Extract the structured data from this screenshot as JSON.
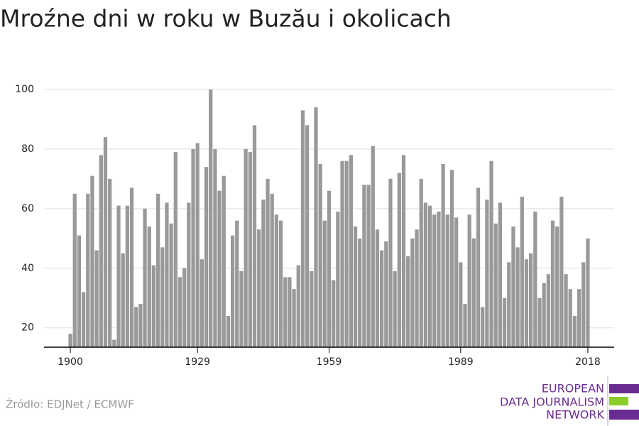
{
  "chart_data": {
    "type": "bar",
    "title": "Mroźne dni w roku w Buzău i okolicach",
    "x": [
      1900,
      1901,
      1902,
      1903,
      1904,
      1905,
      1906,
      1907,
      1908,
      1909,
      1910,
      1911,
      1912,
      1913,
      1914,
      1915,
      1916,
      1917,
      1918,
      1919,
      1920,
      1921,
      1922,
      1923,
      1924,
      1925,
      1926,
      1927,
      1928,
      1929,
      1930,
      1931,
      1932,
      1933,
      1934,
      1935,
      1936,
      1937,
      1938,
      1939,
      1940,
      1941,
      1942,
      1943,
      1944,
      1945,
      1946,
      1947,
      1948,
      1949,
      1950,
      1951,
      1952,
      1953,
      1954,
      1955,
      1956,
      1957,
      1958,
      1959,
      1960,
      1961,
      1962,
      1963,
      1964,
      1965,
      1966,
      1967,
      1968,
      1969,
      1970,
      1971,
      1972,
      1973,
      1974,
      1975,
      1976,
      1977,
      1978,
      1979,
      1980,
      1981,
      1982,
      1983,
      1984,
      1985,
      1986,
      1987,
      1988,
      1989,
      1990,
      1991,
      1992,
      1993,
      1994,
      1995,
      1996,
      1997,
      1998,
      1999,
      2000,
      2001,
      2002,
      2003,
      2004,
      2005,
      2006,
      2007,
      2008,
      2009,
      2010,
      2011,
      2012,
      2013,
      2014,
      2015,
      2016,
      2017,
      2018
    ],
    "values": [
      18,
      65,
      51,
      32,
      65,
      71,
      46,
      78,
      84,
      70,
      16,
      61,
      45,
      61,
      67,
      27,
      28,
      60,
      54,
      41,
      65,
      47,
      62,
      55,
      79,
      37,
      40,
      62,
      80,
      82,
      43,
      74,
      100,
      80,
      66,
      71,
      24,
      51,
      56,
      39,
      80,
      79,
      88,
      53,
      63,
      70,
      65,
      58,
      56,
      37,
      37,
      33,
      41,
      93,
      88,
      39,
      94,
      75,
      56,
      66,
      36,
      59,
      76,
      76,
      78,
      54,
      50,
      68,
      68,
      81,
      53,
      46,
      49,
      70,
      39,
      72,
      78,
      44,
      50,
      53,
      70,
      62,
      61,
      58,
      59,
      75,
      58,
      73,
      57,
      42,
      28,
      58,
      50,
      67,
      27,
      63,
      76,
      55,
      62,
      30,
      42,
      54,
      47,
      64,
      43,
      45,
      59,
      30,
      35,
      38,
      56,
      54,
      64,
      38,
      33,
      24,
      33,
      42,
      50
    ],
    "color": "#999999",
    "xlim": [
      1894,
      2024
    ],
    "xticks": [
      1900,
      1929,
      1959,
      1989,
      2018
    ],
    "ylim": [
      13.5,
      100
    ],
    "yticks": [
      20,
      40,
      60,
      80,
      100
    ],
    "grid": true
  },
  "source": "Źródło: EDJNet / ECMWF",
  "logo": [
    "EUROPEAN",
    "DATA JOURNALISM",
    "NETWORK"
  ]
}
